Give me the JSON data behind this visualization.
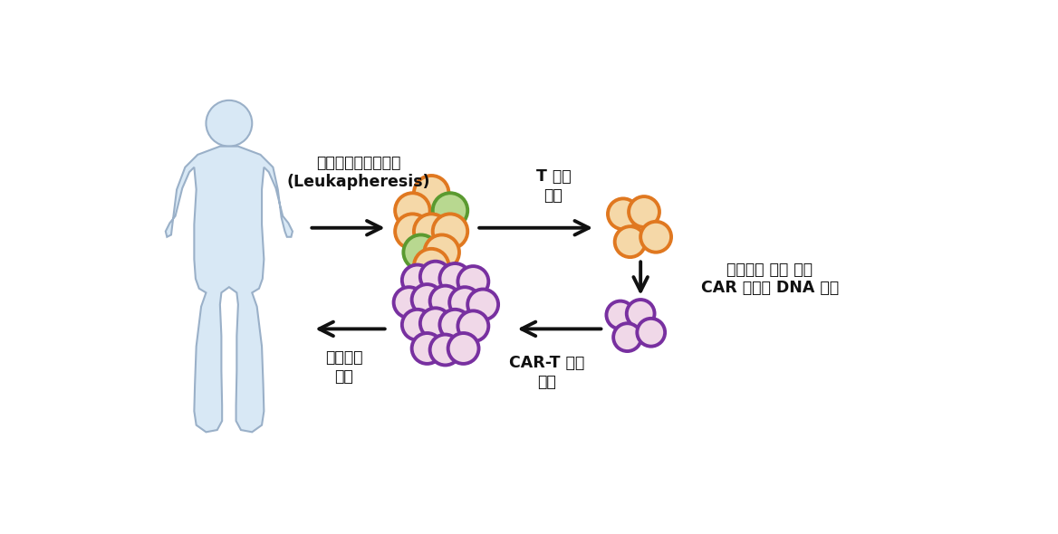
{
  "bg_color": "#ffffff",
  "figure_size": [
    11.68,
    5.9
  ],
  "dpi": 100,
  "body_fill_light": "#d8e8f5",
  "body_fill_dark": "#b0c8de",
  "body_outline": "#9ab0c8",
  "orange_fill": "#f5d8a8",
  "orange_outline": "#e07820",
  "green_fill": "#b8d890",
  "green_outline": "#5a9a30",
  "purple_fill": "#f0d8e8",
  "purple_outline": "#7830a0",
  "arrow_color": "#111111",
  "text_color": "#111111",
  "labels": {
    "leukapheresis": "백혈구성분분리채집\n(Leukapheresis)",
    "t_cell": "T 세포\n추출",
    "virus_vector": "바이러스 벡터 이용\nCAR 디자인 DNA 주입",
    "car_t": "CAR-T 세포\n증식",
    "inject": "환자에게\n주입"
  }
}
